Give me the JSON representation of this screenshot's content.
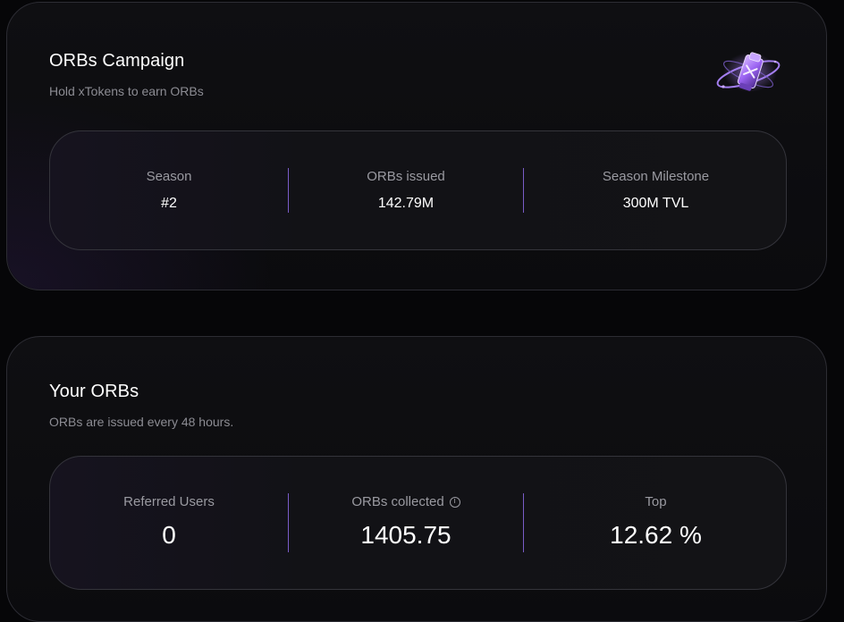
{
  "campaign": {
    "title": "ORBs Campaign",
    "subtitle": "Hold xTokens to earn ORBs",
    "logo_icon": "orb-cube-icon",
    "stats": [
      {
        "label": "Season",
        "value": "#2"
      },
      {
        "label": "ORBs issued",
        "value": "142.79M"
      },
      {
        "label": "Season Milestone",
        "value": "300M TVL"
      }
    ]
  },
  "your_orbs": {
    "title": "Your ORBs",
    "subtitle": "ORBs are issued every 48 hours.",
    "stats": [
      {
        "label": "Referred Users",
        "value": "0"
      },
      {
        "label": "ORBs collected",
        "value": "1405.75",
        "icon": "info-icon"
      },
      {
        "label": "Top",
        "value": "12.62 %"
      }
    ]
  },
  "colors": {
    "accent": "#7a5cc8",
    "background": "#060608",
    "muted_text": "#9a9aa1"
  }
}
